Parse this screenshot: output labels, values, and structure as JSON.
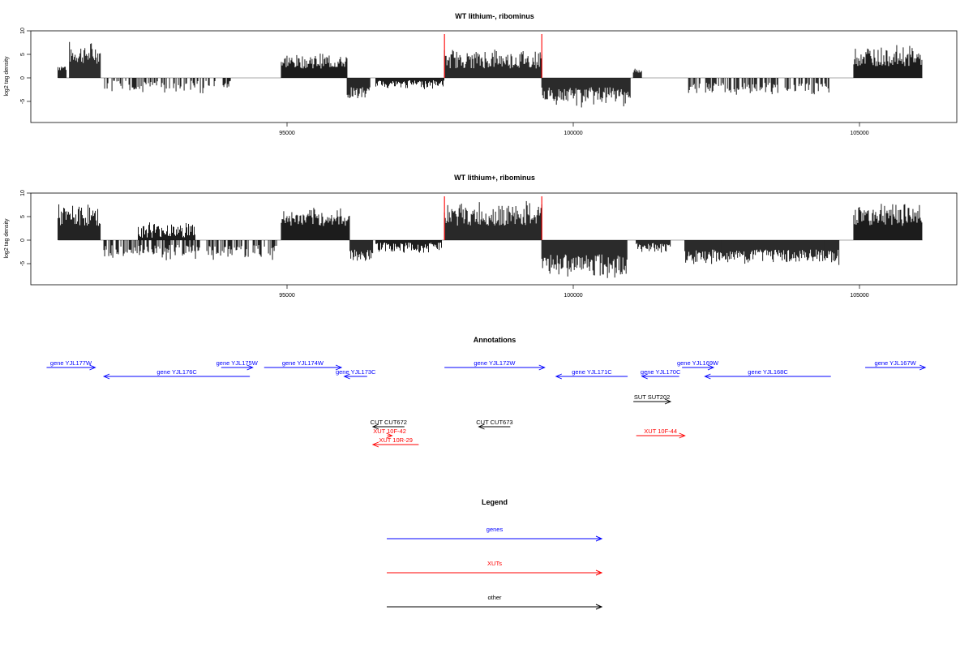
{
  "chart_data": [
    {
      "type": "bar",
      "title": "WT lithium-, ribominus",
      "xlabel": "",
      "ylabel": "log2 tag density",
      "xlim": [
        90500,
        107500
      ],
      "ylim": [
        -9.5,
        10
      ],
      "x_ticks": [
        95000,
        100000,
        105000
      ],
      "x_tick_labels": [
        "95000",
        "100000",
        "105000"
      ],
      "y_ticks": [
        -5,
        0,
        5,
        10
      ],
      "y_tick_labels": [
        "-5",
        "0",
        "5",
        "10"
      ],
      "highlight_lines": [
        97750,
        99450
      ],
      "highlight_color": "#ff0000",
      "segments": [
        {
          "x_start": 91000,
          "x_end": 91150,
          "min": 1.5,
          "max": 3.5,
          "sign": 1
        },
        {
          "x_start": 91200,
          "x_end": 91750,
          "min": 3,
          "max": 8,
          "sign": 1
        },
        {
          "x_start": 91800,
          "x_end": 94050,
          "min": 0.5,
          "max": 3.5,
          "sign": -1
        },
        {
          "x_start": 94900,
          "x_end": 96050,
          "min": 2,
          "max": 5.5,
          "sign": 1
        },
        {
          "x_start": 96050,
          "x_end": 96450,
          "min": 2,
          "max": 5,
          "sign": -1
        },
        {
          "x_start": 96550,
          "x_end": 97750,
          "min": 0.5,
          "max": 2.5,
          "sign": -1
        },
        {
          "x_start": 97750,
          "x_end": 99450,
          "min": 2,
          "max": 6.5,
          "sign": 1
        },
        {
          "x_start": 99450,
          "x_end": 101000,
          "min": 2,
          "max": 6.5,
          "sign": -1
        },
        {
          "x_start": 101050,
          "x_end": 101200,
          "min": 1,
          "max": 2.5,
          "sign": 1
        },
        {
          "x_start": 102000,
          "x_end": 104500,
          "min": 1,
          "max": 4,
          "sign": -1
        },
        {
          "x_start": 104900,
          "x_end": 106100,
          "min": 2.5,
          "max": 7.5,
          "sign": 1
        }
      ]
    },
    {
      "type": "bar",
      "title": "WT lithium+, ribominus",
      "xlabel": "",
      "ylabel": "log2 tag density",
      "xlim": [
        90500,
        107500
      ],
      "ylim": [
        -9.5,
        10
      ],
      "x_ticks": [
        95000,
        100000,
        105000
      ],
      "x_tick_labels": [
        "95000",
        "100000",
        "105000"
      ],
      "y_ticks": [
        -5,
        0,
        5,
        10
      ],
      "y_tick_labels": [
        "-5",
        "0",
        "5",
        "10"
      ],
      "highlight_lines": [
        97750,
        99450
      ],
      "highlight_color": "#ff0000",
      "segments": [
        {
          "x_start": 91000,
          "x_end": 91750,
          "min": 3,
          "max": 8,
          "sign": 1
        },
        {
          "x_start": 91800,
          "x_end": 94850,
          "min": 1,
          "max": 4.5,
          "sign": -1
        },
        {
          "x_start": 92400,
          "x_end": 93400,
          "min": 0.5,
          "max": 4.5,
          "sign": 1
        },
        {
          "x_start": 94900,
          "x_end": 96100,
          "min": 3,
          "max": 7,
          "sign": 1
        },
        {
          "x_start": 96100,
          "x_end": 96500,
          "min": 2,
          "max": 5.5,
          "sign": -1
        },
        {
          "x_start": 96550,
          "x_end": 97700,
          "min": 0.5,
          "max": 3,
          "sign": -1
        },
        {
          "x_start": 97750,
          "x_end": 99450,
          "min": 3,
          "max": 8.5,
          "sign": 1
        },
        {
          "x_start": 99450,
          "x_end": 100950,
          "min": 3,
          "max": 8.5,
          "sign": -1
        },
        {
          "x_start": 101100,
          "x_end": 101700,
          "min": 0.5,
          "max": 3,
          "sign": -1
        },
        {
          "x_start": 101950,
          "x_end": 104650,
          "min": 2,
          "max": 5.5,
          "sign": -1
        },
        {
          "x_start": 104900,
          "x_end": 106100,
          "min": 3,
          "max": 9,
          "sign": 1
        }
      ]
    }
  ],
  "annotations": {
    "title": "Annotations",
    "x_ref": [
      95000,
      100000,
      105000
    ],
    "items": [
      {
        "label": "gene YJL177W",
        "start": 90800,
        "end": 91650,
        "row": 0,
        "dir": 1,
        "color": "#0000ff"
      },
      {
        "label": "gene YJL176C",
        "start": 91800,
        "end": 94350,
        "row": 1,
        "dir": -1,
        "color": "#0000ff"
      },
      {
        "label": "gene YJL175W",
        "start": 93850,
        "end": 94400,
        "row": 0,
        "dir": 1,
        "color": "#0000ff"
      },
      {
        "label": "gene YJL174W",
        "start": 94600,
        "end": 95950,
        "row": 0,
        "dir": 1,
        "color": "#0000ff"
      },
      {
        "label": "gene YJL173C",
        "start": 96000,
        "end": 96400,
        "row": 1,
        "dir": -1,
        "color": "#0000ff"
      },
      {
        "label": "gene YJL172W",
        "start": 97750,
        "end": 99500,
        "row": 0,
        "dir": 1,
        "color": "#0000ff"
      },
      {
        "label": "gene YJL171C",
        "start": 99700,
        "end": 100950,
        "row": 1,
        "dir": -1,
        "color": "#0000ff"
      },
      {
        "label": "gene YJL170C",
        "start": 101200,
        "end": 101850,
        "row": 1,
        "dir": -1,
        "color": "#0000ff"
      },
      {
        "label": "gene YJL169W",
        "start": 101900,
        "end": 102450,
        "row": 0,
        "dir": 1,
        "color": "#0000ff"
      },
      {
        "label": "gene YJL168C",
        "start": 102300,
        "end": 104500,
        "row": 1,
        "dir": -1,
        "color": "#0000ff"
      },
      {
        "label": "gene YJL167W",
        "start": 105100,
        "end": 106150,
        "row": 0,
        "dir": 1,
        "color": "#0000ff"
      },
      {
        "label": "SUT SUT202",
        "start": 101050,
        "end": 101700,
        "row": 2,
        "dir": 1,
        "color": "#000000"
      },
      {
        "label": "CUT CUT672",
        "start": 96500,
        "end": 97050,
        "row": 3,
        "dir": -1,
        "color": "#000000"
      },
      {
        "label": "CUT CUT673",
        "start": 98350,
        "end": 98900,
        "row": 3,
        "dir": -1,
        "color": "#000000"
      },
      {
        "label": "XUT 10F-42",
        "start": 96750,
        "end": 96800,
        "row": 4,
        "dir": 1,
        "color": "#ff0000"
      },
      {
        "label": "XUT 10F-44",
        "start": 101100,
        "end": 101950,
        "row": 4,
        "dir": 1,
        "color": "#ff0000"
      },
      {
        "label": "XUT 10R-29",
        "start": 96500,
        "end": 97300,
        "row": 5,
        "dir": -1,
        "color": "#ff0000"
      }
    ]
  },
  "legend": {
    "title": "Legend",
    "entries": [
      {
        "label": "genes",
        "color": "#0000ff"
      },
      {
        "label": "XUTs",
        "color": "#ff0000"
      },
      {
        "label": "other",
        "color": "#000000"
      }
    ]
  }
}
